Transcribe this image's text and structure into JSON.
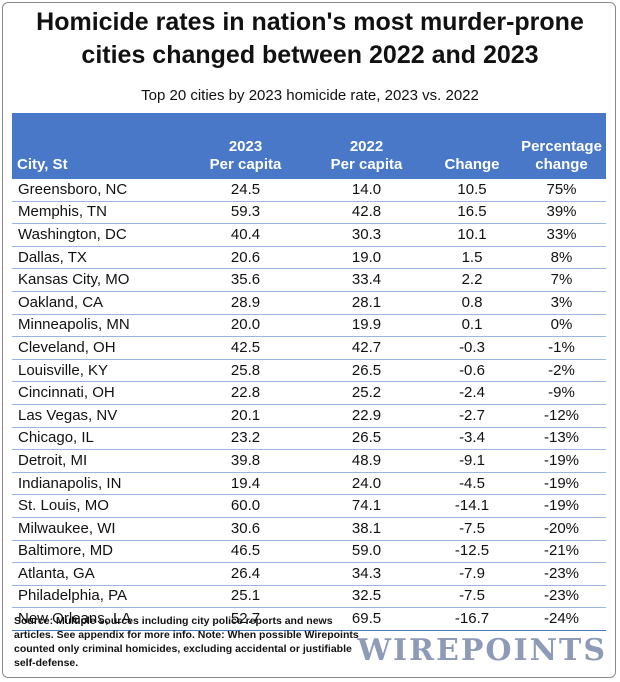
{
  "title_line1": "Homicide rates in nation's most murder-prone",
  "title_line2": "cities changed between 2022 and 2023",
  "subtitle": "Top 20 cities by 2023 homicide rate, 2023 vs. 2022",
  "headers": {
    "city": "City, St",
    "y2023_line1": "2023",
    "y2023_line2": "Per capita",
    "y2022_line1": "2022",
    "y2022_line2": "Per capita",
    "change": "Change",
    "pct_line1": "Percentage",
    "pct_line2": "change"
  },
  "footer_note": "Source: Multiple sources including city police reports and news articles. See appendix for more info.  Note: When possible Wirepoints counted only criminal homicides, excluding accidental or justifiable self-defense.",
  "logo_text": "WIREPOINTS",
  "colors": {
    "header_bg": "#4978c8",
    "row_line": "#9db4dc",
    "logo": "#8e9bb8"
  },
  "chart_data": {
    "type": "table",
    "columns": [
      "City, St",
      "2023 Per capita",
      "2022 Per capita",
      "Change",
      "Percentage change"
    ],
    "rows": [
      [
        "Greensboro, NC",
        "24.5",
        "14.0",
        "10.5",
        "75%"
      ],
      [
        "Memphis, TN",
        "59.3",
        "42.8",
        "16.5",
        "39%"
      ],
      [
        "Washington, DC",
        "40.4",
        "30.3",
        "10.1",
        "33%"
      ],
      [
        "Dallas, TX",
        "20.6",
        "19.0",
        "1.5",
        "8%"
      ],
      [
        "Kansas City, MO",
        "35.6",
        "33.4",
        "2.2",
        "7%"
      ],
      [
        "Oakland, CA",
        "28.9",
        "28.1",
        "0.8",
        "3%"
      ],
      [
        "Minneapolis, MN",
        "20.0",
        "19.9",
        "0.1",
        "0%"
      ],
      [
        "Cleveland, OH",
        "42.5",
        "42.7",
        "-0.3",
        "-1%"
      ],
      [
        "Louisville, KY",
        "25.8",
        "26.5",
        "-0.6",
        "-2%"
      ],
      [
        "Cincinnati, OH",
        "22.8",
        "25.2",
        "-2.4",
        "-9%"
      ],
      [
        "Las Vegas, NV",
        "20.1",
        "22.9",
        "-2.7",
        "-12%"
      ],
      [
        "Chicago, IL",
        "23.2",
        "26.5",
        "-3.4",
        "-13%"
      ],
      [
        "Detroit, MI",
        "39.8",
        "48.9",
        "-9.1",
        "-19%"
      ],
      [
        "Indianapolis, IN",
        "19.4",
        "24.0",
        "-4.5",
        "-19%"
      ],
      [
        "St. Louis, MO",
        "60.0",
        "74.1",
        "-14.1",
        "-19%"
      ],
      [
        "Milwaukee, WI",
        "30.6",
        "38.1",
        "-7.5",
        "-20%"
      ],
      [
        "Baltimore, MD",
        "46.5",
        "59.0",
        "-12.5",
        "-21%"
      ],
      [
        "Atlanta, GA",
        "26.4",
        "34.3",
        "-7.9",
        "-23%"
      ],
      [
        "Philadelphia, PA",
        "25.1",
        "32.5",
        "-7.5",
        "-23%"
      ],
      [
        "New Orleans, LA",
        "52.7",
        "69.5",
        "-16.7",
        "-24%"
      ]
    ]
  }
}
